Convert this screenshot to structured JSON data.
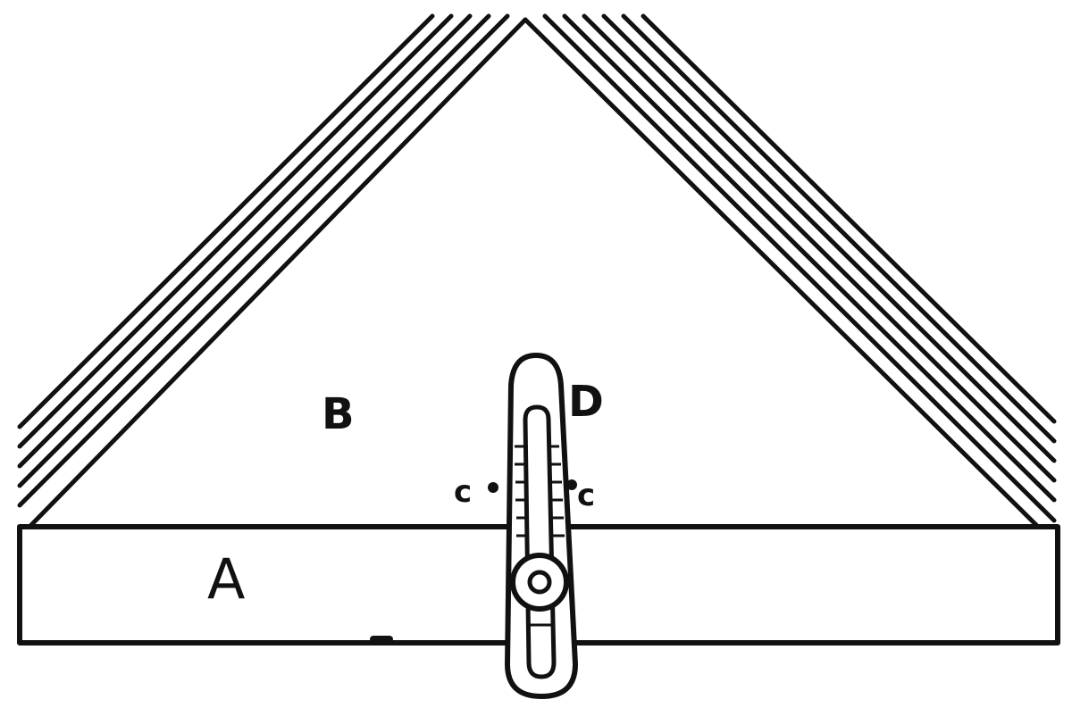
{
  "diagram": {
    "labels": {
      "a": "A",
      "b": "B",
      "d": "D",
      "c_left": "c",
      "c_right": "c"
    },
    "colors": {
      "ink": "#111111",
      "paper": "#ffffff"
    }
  }
}
